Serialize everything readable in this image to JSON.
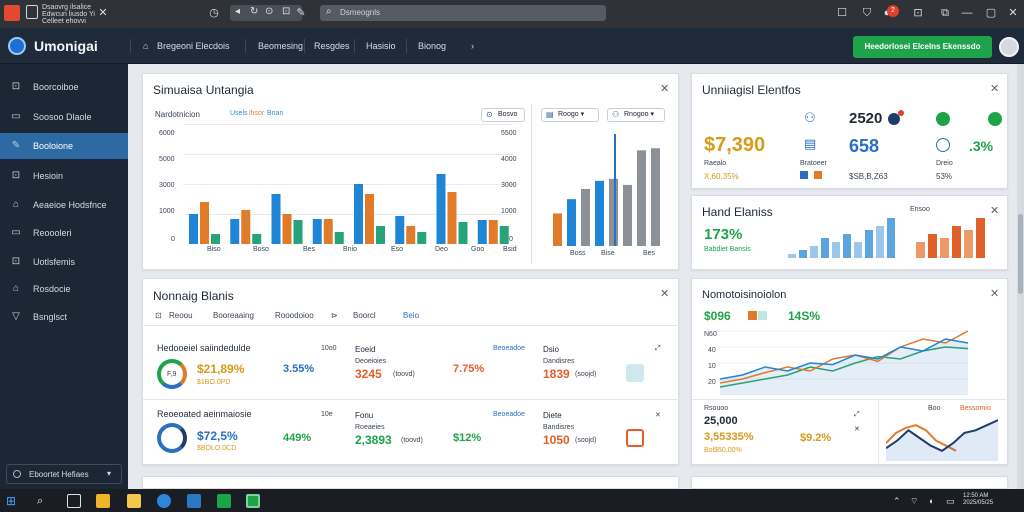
{
  "titlebar": {
    "app_text": "Dsaovrg ilsalice\nEdwcun liusdo Yi\nCelleet ehovvi",
    "search_placeholder": "Dsmeognls"
  },
  "header": {
    "brand": "Umonigai",
    "nav": [
      "Bregeoni Elecdois",
      "Beomesing",
      "Resgdes",
      "Hasisio",
      "Bionog"
    ],
    "primary_button": "Heedorlosei Elcelns Ekenssdo"
  },
  "sidebar": {
    "items": [
      {
        "label": "Boorcoiboe",
        "icon": "⊡"
      },
      {
        "label": "Soosoo Dlaole",
        "icon": "▭"
      },
      {
        "label": "Booloione",
        "icon": "✎"
      },
      {
        "label": "Hesioin",
        "icon": "⊡"
      },
      {
        "label": "Aeaeioe Hodsfnce",
        "icon": "⌂"
      },
      {
        "label": "Reoooleri",
        "icon": "▭"
      },
      {
        "label": "Uotlsfemis",
        "icon": "⊡"
      },
      {
        "label": "Rosdocie",
        "icon": "⌂"
      },
      {
        "label": "Bsnglsct",
        "icon": "▽"
      }
    ],
    "footer": "Eboortet Hefiaes"
  },
  "card1": {
    "title": "Simuaisa Untangia",
    "subtitle": "Nardotnicion",
    "legend": [
      "Usels",
      "lhsor",
      "Bnan"
    ],
    "pill1": "Bosvo",
    "pill2": "Roogo",
    "pill3": "Rnogoo",
    "yticks": [
      "6000",
      "5000",
      "3000",
      "1000",
      "0"
    ],
    "xticks": [
      "Biso",
      "Boso",
      "Bes",
      "Bnio",
      "Eso",
      "Deo",
      "Goo",
      "Bsid"
    ],
    "yticks_right": [
      "5500",
      "4000",
      "3000",
      "1000",
      "0"
    ],
    "xticks_small": [
      "Boss",
      "Bise"
    ],
    "xticks_small2": [
      "Bes"
    ]
  },
  "card2": {
    "title": "Unniiagisl Elentfos",
    "big1": "$7,390",
    "sub1": "Raealo",
    "foot1": "X,60.35%",
    "big2": "2520",
    "big3": "658",
    "sub3": "Bratoeer",
    "foot3": "$SB,B,Z63",
    "big4": ".3%",
    "sub4": "Dreio",
    "foot4": "53%"
  },
  "card3": {
    "title": "Hand Elaniss",
    "sub": "Ensoo",
    "big": "173%",
    "caption": "Babdiet Bansis"
  },
  "card4": {
    "title": "Nonnaig Blanis",
    "tabs": [
      "Reoou",
      "Booreaaing",
      "Rooodoioo",
      "Boorcl",
      "Beio"
    ],
    "tab_icon": "Rn",
    "row1": {
      "heading": "Hedooeiel saiindedulde",
      "ring_label": "F,9",
      "money": "$21,89%",
      "small_money": "$1BO.0PD",
      "stat1_label": "10o0",
      "stat1": "3.55%",
      "col2_head": "Eoeid",
      "col2_sub": "Deoeioies",
      "col2_big": "3245",
      "col2_unit": "(toovd)",
      "col3_head": "Beoeadoe",
      "col3_big": "7.75%",
      "col4_head": "Dsio",
      "col4_sub": "Dandisres",
      "col4_big": "1839",
      "col4_unit": "(soojd)"
    },
    "row2": {
      "heading": "Reoeoated aeinmaiosie",
      "money": "$72,5%",
      "small_money": "$BOLO.0CD",
      "stat1_label": "10e",
      "stat1": "449%",
      "col2_head": "Fonu",
      "col2_sub": "Roeaeies",
      "col2_big": "2,3893",
      "col2_unit": "(toovd)",
      "col3_head": "Beoeadoe",
      "col3_big": "$12%",
      "col4_head": "Diete",
      "col4_sub": "Bandisres",
      "col4_big": "1050",
      "col4_unit": "(soojd)"
    }
  },
  "card5": {
    "title": "Nomotoisinoiolon",
    "big1": "$096",
    "big2": "14S%",
    "yticks": [
      "N60",
      "40",
      "10",
      "20"
    ],
    "sub_a": "Rsouoo",
    "big_a": "25,000",
    "big_b": "3,55335%",
    "foot_b": "Bol$50,00%",
    "big_c": "$9.2%",
    "legend_small": "Boo",
    "legend_right": "Bessomio"
  },
  "colors": {
    "blue": "#1f85d6",
    "orange": "#e07b2a",
    "teal": "#26a37a",
    "gray": "#8c9197",
    "green": "#1ea34a",
    "gold": "#d99a1d",
    "navy": "#1f3c6b"
  },
  "charts": {
    "card1_groups": [
      {
        "values": [
          1500,
          2100,
          500
        ]
      },
      {
        "values": [
          1250,
          1700,
          500
        ]
      },
      {
        "values": [
          2500,
          1500,
          1200
        ]
      },
      {
        "values": [
          1250,
          1250,
          600
        ]
      },
      {
        "values": [
          3000,
          2500,
          900
        ]
      },
      {
        "values": [
          1400,
          900,
          600
        ]
      },
      {
        "values": [
          3500,
          2600,
          1100
        ]
      },
      {
        "values": [
          1200,
          1200,
          900
        ]
      }
    ],
    "card1_right": [
      1600,
      2300,
      2800,
      3200,
      3300,
      3000,
      4700,
      4800
    ],
    "card3_blue": [
      10,
      20,
      30,
      50,
      40,
      60,
      40,
      70,
      80,
      100
    ],
    "card3_orange": [
      40,
      60,
      50,
      80,
      70,
      100
    ],
    "card5_line_blue": [
      20,
      25,
      35,
      30,
      40,
      38,
      50,
      45,
      60,
      55,
      70,
      65
    ],
    "card5_line_orange": [
      15,
      20,
      28,
      35,
      30,
      45,
      50,
      42,
      60,
      70,
      65,
      80
    ],
    "card5_line_teal": [
      10,
      15,
      20,
      25,
      35,
      30,
      40,
      48,
      45,
      55,
      60,
      58
    ],
    "card5_wave_blue": [
      25,
      40,
      60,
      45,
      30,
      20,
      35,
      55,
      60,
      70,
      80
    ],
    "card5_wave_orange": [
      35,
      55,
      65,
      70,
      60,
      40,
      30,
      20
    ]
  }
}
